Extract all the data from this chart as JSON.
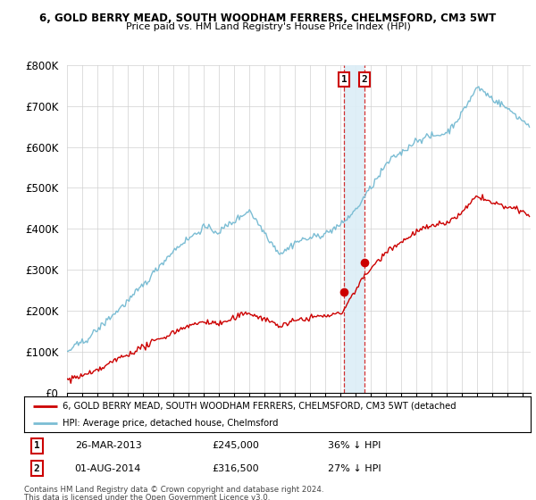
{
  "title1": "6, GOLD BERRY MEAD, SOUTH WOODHAM FERRERS, CHELMSFORD, CM3 5WT",
  "title2": "Price paid vs. HM Land Registry's House Price Index (HPI)",
  "ylim": [
    0,
    800000
  ],
  "yticks": [
    0,
    100000,
    200000,
    300000,
    400000,
    500000,
    600000,
    700000,
    800000
  ],
  "ytick_labels": [
    "£0",
    "£100K",
    "£200K",
    "£300K",
    "£400K",
    "£500K",
    "£600K",
    "£700K",
    "£800K"
  ],
  "hpi_color": "#7bbdd4",
  "price_color": "#cc0000",
  "dot_color": "#cc0000",
  "vertical_band_color": "#dceef7",
  "legend_label_red": "6, GOLD BERRY MEAD, SOUTH WOODHAM FERRERS, CHELMSFORD, CM3 5WT (detached",
  "legend_label_blue": "HPI: Average price, detached house, Chelmsford",
  "annotation1_date": "26-MAR-2013",
  "annotation1_price": "£245,000",
  "annotation1_pct": "36% ↓ HPI",
  "annotation2_date": "01-AUG-2014",
  "annotation2_price": "£316,500",
  "annotation2_pct": "27% ↓ HPI",
  "footer1": "Contains HM Land Registry data © Crown copyright and database right 2024.",
  "footer2": "This data is licensed under the Open Government Licence v3.0.",
  "sale1_x_year": 2013.22,
  "sale1_y": 245000,
  "sale2_x_year": 2014.58,
  "sale2_y": 316500,
  "xmin": 1995.0,
  "xmax": 2025.5
}
